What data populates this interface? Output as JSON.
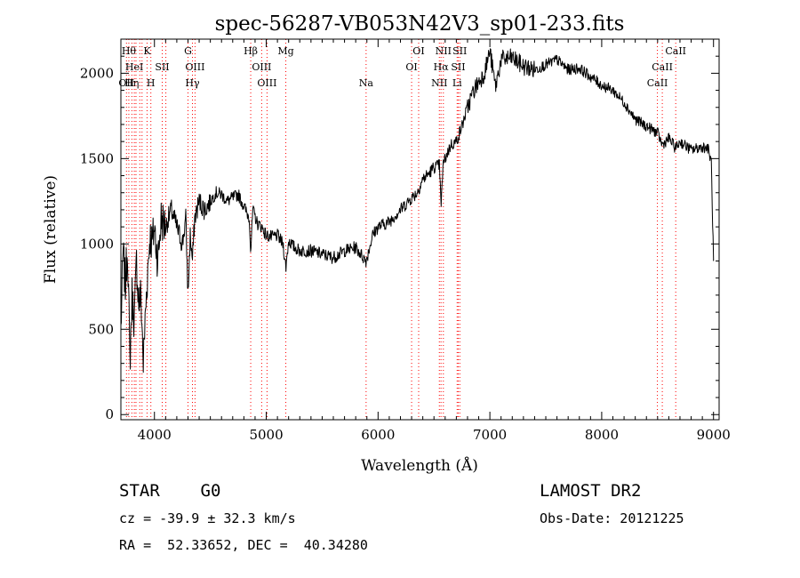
{
  "chart_data": {
    "type": "line",
    "title": "spec-56287-VB053N42V3_sp01-233.fits",
    "xlabel": "Wavelength (Å)",
    "ylabel": "Flux (relative)",
    "xlim": [
      3700,
      9050
    ],
    "ylim": [
      -30,
      2200
    ],
    "xticks": [
      {
        "value": 4000,
        "label": "4000"
      },
      {
        "value": 5000,
        "label": "5000"
      },
      {
        "value": 6000,
        "label": "6000"
      },
      {
        "value": 7000,
        "label": "7000"
      },
      {
        "value": 8000,
        "label": "8000"
      },
      {
        "value": 9000,
        "label": "9000"
      }
    ],
    "yticks": [
      {
        "value": 0,
        "label": "0"
      },
      {
        "value": 500,
        "label": "500"
      },
      {
        "value": 1000,
        "label": "1000"
      },
      {
        "value": 1500,
        "label": "1500"
      },
      {
        "value": 2000,
        "label": "2000"
      }
    ],
    "grid": false,
    "line_color": "#000000",
    "marker_color": "#ff0000",
    "series": [
      {
        "x": [
          3700,
          3720,
          3740,
          3760,
          3780,
          3800,
          3820,
          3840,
          3860,
          3880,
          3900,
          3920,
          3940,
          3960,
          3980,
          4000,
          4030,
          4060,
          4100,
          4150,
          4200,
          4250,
          4280,
          4300,
          4320,
          4340,
          4360,
          4400,
          4450,
          4500,
          4550,
          4600,
          4650,
          4700,
          4750,
          4800,
          4850,
          4861,
          4880,
          4920,
          4960,
          5000,
          5050,
          5100,
          5150,
          5175,
          5200,
          5250,
          5300,
          5400,
          5500,
          5600,
          5700,
          5800,
          5893,
          5950,
          6000,
          6100,
          6200,
          6300,
          6350,
          6400,
          6450,
          6500,
          6550,
          6563,
          6580,
          6600,
          6650,
          6700,
          6750,
          6800,
          6850,
          6900,
          6950,
          7000,
          7050,
          7100,
          7200,
          7300,
          7400,
          7500,
          7600,
          7700,
          7800,
          7900,
          8000,
          8100,
          8200,
          8300,
          8400,
          8500,
          8542,
          8600,
          8662,
          8700,
          8800,
          8900,
          8950,
          8980,
          9000
        ],
        "y": [
          500,
          950,
          750,
          1000,
          300,
          700,
          550,
          900,
          650,
          700,
          300,
          600,
          850,
          1050,
          1000,
          1100,
          900,
          1150,
          1100,
          1200,
          1100,
          1000,
          1150,
          700,
          1050,
          900,
          1150,
          1250,
          1200,
          1250,
          1300,
          1290,
          1250,
          1270,
          1290,
          1220,
          1150,
          950,
          1200,
          1120,
          1100,
          1050,
          1040,
          1050,
          1000,
          860,
          1020,
          980,
          960,
          960,
          940,
          920,
          960,
          980,
          900,
          1050,
          1100,
          1130,
          1200,
          1270,
          1300,
          1380,
          1410,
          1450,
          1460,
          1200,
          1460,
          1500,
          1580,
          1600,
          1690,
          1800,
          1890,
          1950,
          2000,
          2130,
          1920,
          2080,
          2090,
          2040,
          2020,
          2050,
          2080,
          2020,
          2030,
          1980,
          1930,
          1900,
          1830,
          1730,
          1690,
          1650,
          1580,
          1620,
          1560,
          1600,
          1550,
          1570,
          1560,
          1480,
          900
        ]
      }
    ],
    "lines": [
      {
        "x": 3750,
        "text": "OII",
        "row": 2
      },
      {
        "x": 3771,
        "text": "Hθ",
        "row": 0
      },
      {
        "x": 3798,
        "text": "Hη",
        "row": 2
      },
      {
        "x": 3820,
        "text": "HeI",
        "row": 1
      },
      {
        "x": 3835,
        "text": "",
        "row": -1
      },
      {
        "x": 3869,
        "text": "",
        "row": -1
      },
      {
        "x": 3889,
        "text": "",
        "row": -1
      },
      {
        "x": 3934,
        "text": "K",
        "row": 0
      },
      {
        "x": 3968,
        "text": "H",
        "row": 2
      },
      {
        "x": 4070,
        "text": "SII",
        "row": 1
      },
      {
        "x": 4102,
        "text": "",
        "row": -1
      },
      {
        "x": 4300,
        "text": "G",
        "row": 0
      },
      {
        "x": 4340,
        "text": "Hγ",
        "row": 2
      },
      {
        "x": 4363,
        "text": "OIII",
        "row": 1
      },
      {
        "x": 4861,
        "text": "Hβ",
        "row": 0
      },
      {
        "x": 4959,
        "text": "OIII",
        "row": 1
      },
      {
        "x": 5007,
        "text": "OIII",
        "row": 2
      },
      {
        "x": 5175,
        "text": "Mg",
        "row": 0
      },
      {
        "x": 5893,
        "text": "Na",
        "row": 2
      },
      {
        "x": 6300,
        "text": "OI",
        "row": 1
      },
      {
        "x": 6363,
        "text": "OI",
        "row": 0
      },
      {
        "x": 6548,
        "text": "NII",
        "row": 2
      },
      {
        "x": 6563,
        "text": "Hα",
        "row": 1
      },
      {
        "x": 6584,
        "text": "NII",
        "row": 0
      },
      {
        "x": 6707,
        "text": "Li",
        "row": 2
      },
      {
        "x": 6717,
        "text": "SII",
        "row": 1
      },
      {
        "x": 6731,
        "text": "SII",
        "row": 0
      },
      {
        "x": 8498,
        "text": "CaII",
        "row": 2
      },
      {
        "x": 8542,
        "text": "CaII",
        "row": 1
      },
      {
        "x": 8662,
        "text": "CaII",
        "row": 0
      }
    ]
  },
  "info": {
    "class_line": "STAR    G0",
    "survey": "LAMOST DR2",
    "cz_line": "cz = -39.9 ± 32.3 km/s",
    "obs_date": "Obs-Date: 20121225",
    "radec_line": "RA =  52.33652, DEC =  40.34280"
  }
}
